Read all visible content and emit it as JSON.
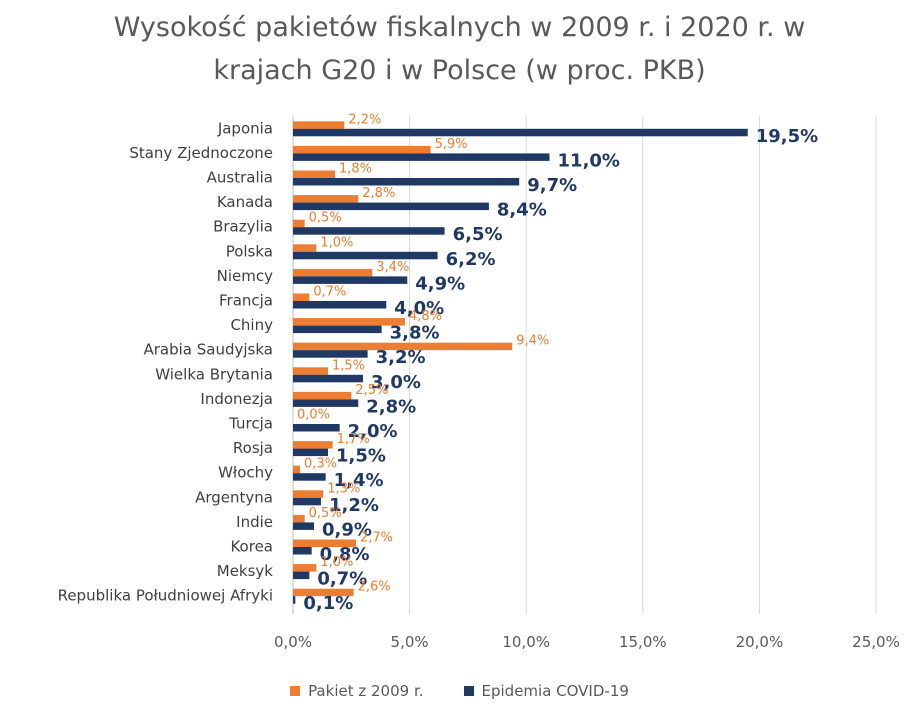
{
  "title_lines": [
    "Wysokość pakietów fiskalnych w 2009 r. i 2020 r. w",
    "krajach G20 i w Polsce (w proc. PKB)"
  ],
  "legend": {
    "series1_label": "Pakiet z 2009 r.",
    "series2_label": "Epidemia COVID-19"
  },
  "chart_data": {
    "type": "bar",
    "orientation": "horizontal",
    "title": "Wysokość pakietów fiskalnych w 2009 r. i 2020 r. w krajach G20 i w Polsce (w proc. PKB)",
    "categories": [
      "Japonia",
      "Stany Zjednoczone",
      "Australia",
      "Kanada",
      "Brazylia",
      "Polska",
      "Niemcy",
      "Francja",
      "Chiny",
      "Arabia Saudyjska",
      "Wielka Brytania",
      "Indonezja",
      "Turcja",
      "Rosja",
      "Włochy",
      "Argentyna",
      "Indie",
      "Korea",
      "Meksyk",
      "Republika Południowej Afryki"
    ],
    "series": [
      {
        "name": "Pakiet z 2009 r.",
        "color": "#ED7D31",
        "values": [
          2.2,
          5.9,
          1.8,
          2.8,
          0.5,
          1.0,
          3.4,
          0.7,
          4.8,
          9.4,
          1.5,
          2.5,
          0.0,
          1.7,
          0.3,
          1.3,
          0.5,
          2.7,
          1.0,
          2.6
        ],
        "labels": [
          "2,2%",
          "5,9%",
          "1,8%",
          "2,8%",
          "0,5%",
          "1,0%",
          "3,4%",
          "0,7%",
          "4,8%",
          "9,4%",
          "1,5%",
          "2,5%",
          "0,0%",
          "1,7%",
          "0,3%",
          "1,3%",
          "0,5%",
          "2,7%",
          "1,0%",
          "2,6%"
        ]
      },
      {
        "name": "Epidemia COVID-19",
        "color": "#203864",
        "values": [
          19.5,
          11.0,
          9.7,
          8.4,
          6.5,
          6.2,
          4.9,
          4.0,
          3.8,
          3.2,
          3.0,
          2.8,
          2.0,
          1.5,
          1.4,
          1.2,
          0.9,
          0.8,
          0.7,
          0.1
        ],
        "labels": [
          "19,5%",
          "11,0%",
          "9,7%",
          "8,4%",
          "6,5%",
          "6,2%",
          "4,9%",
          "4,0%",
          "3,8%",
          "3,2%",
          "3,0%",
          "2,8%",
          "2,0%",
          "1,5%",
          "1,4%",
          "1,2%",
          "0,9%",
          "0,8%",
          "0,7%",
          "0,1%"
        ]
      }
    ],
    "xlim": [
      0,
      25
    ],
    "xticks": [
      0,
      5,
      10,
      15,
      20,
      25
    ],
    "xtick_labels": [
      "0,0%",
      "5,0%",
      "10,0%",
      "15,0%",
      "20,0%",
      "25,0%"
    ],
    "grid": true,
    "legend_position": "bottom"
  }
}
